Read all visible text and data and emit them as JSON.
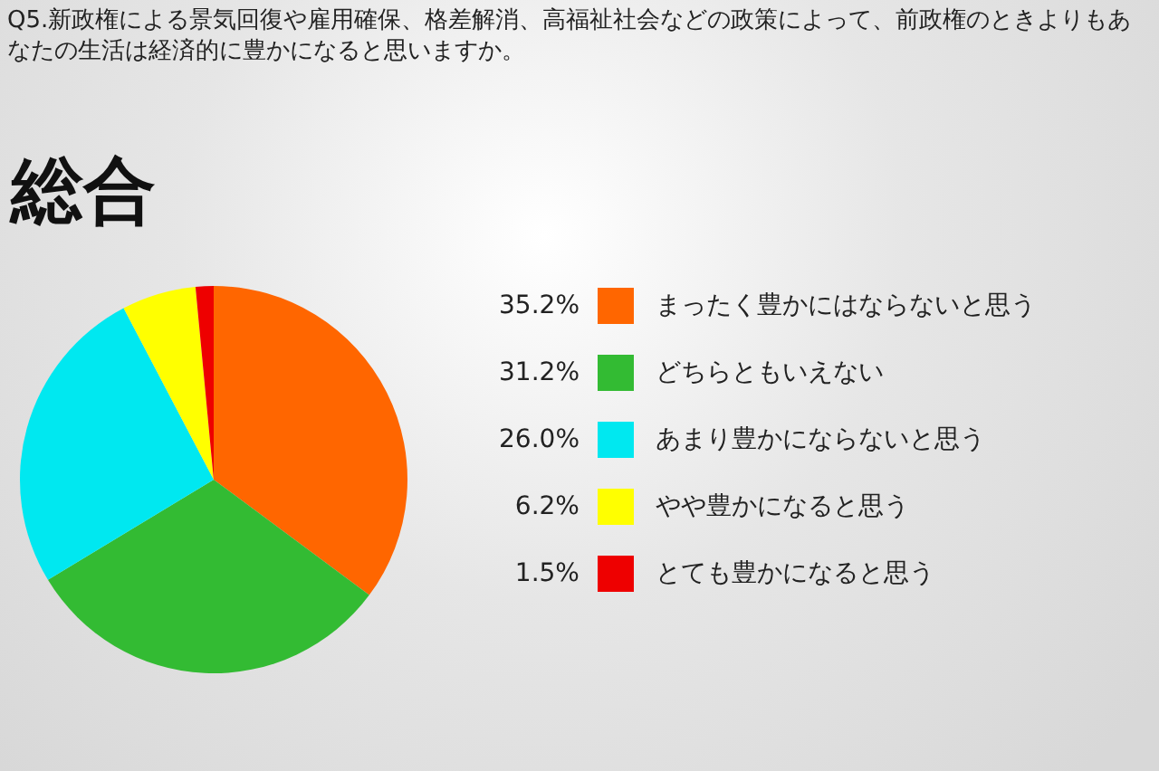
{
  "chart_data": {
    "type": "pie",
    "title": "Q5.新政権による景気回復や雇用確保、格差解消、高福祉社会などの政策によって、前政権のときよりもあなたの生活は経済的に豊かになると思いますか。",
    "subtitle": "総合",
    "categories": [
      "まったく豊かにはならないと思う",
      "どちらともいえない",
      "あまり豊かにならないと思う",
      "やや豊かになると思う",
      "とても豊かになると思う"
    ],
    "values": [
      35.2,
      31.2,
      26.0,
      6.2,
      1.5
    ],
    "value_labels": [
      "35.2%",
      "31.2%",
      "26.0%",
      "6.2%",
      "1.5%"
    ],
    "colors": [
      "#ff6600",
      "#33bb33",
      "#00e8f0",
      "#ffff00",
      "#ee0000"
    ],
    "legend": "right"
  }
}
